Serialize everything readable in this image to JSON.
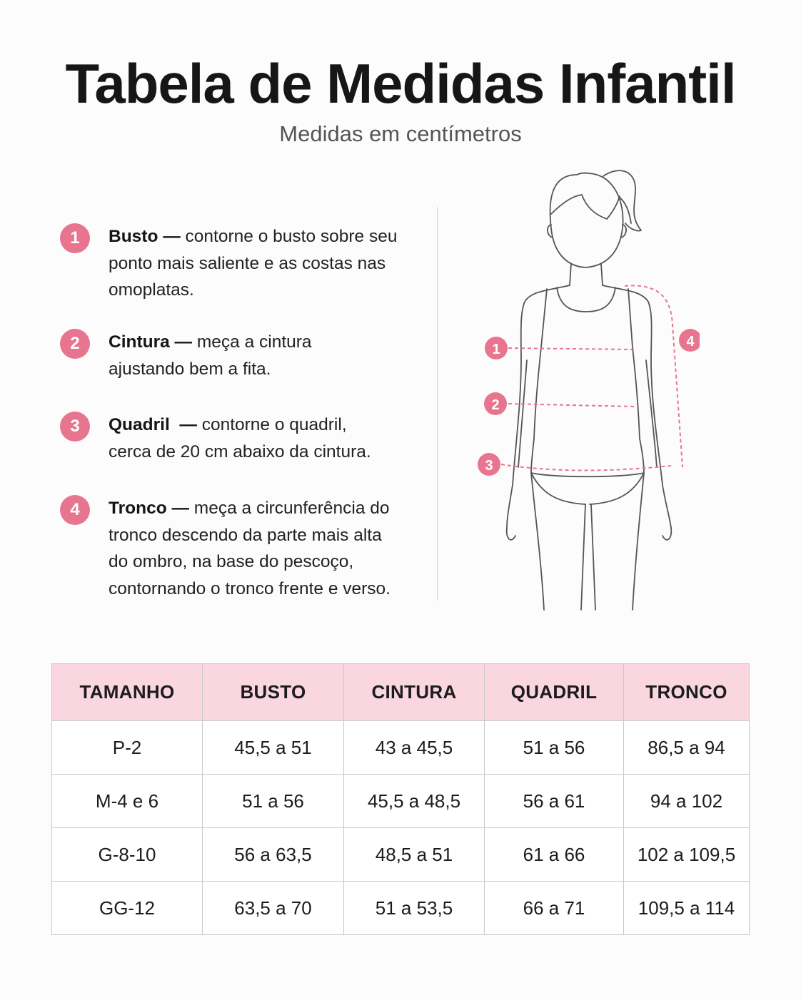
{
  "title": "Tabela de Medidas Infantil",
  "subtitle": "Medidas em centímetros",
  "accent_color": "#e8758f",
  "header_color": "#f9d6e0",
  "instructions": [
    {
      "number": "1",
      "name": "Busto",
      "sep": " — ",
      "text": "contorne o busto sobre seu ponto mais saliente e as costas nas omoplatas."
    },
    {
      "number": "2",
      "name": "Cintura",
      "sep": " — ",
      "text": "meça a cintura ajustando bem a fita."
    },
    {
      "number": "3",
      "name": "Quadril",
      "sep": "  — ",
      "text": "contorne o quadril, cerca de 20 cm abaixo da cintura."
    },
    {
      "number": "4",
      "name": "Tronco",
      "sep": " — ",
      "text": "meça a circunferência do tronco descendo da parte mais alta do ombro, na base do pescoço, contornando o tronco frente e verso."
    }
  ],
  "figure_markers": [
    "1",
    "2",
    "3",
    "4"
  ],
  "table": {
    "headers": [
      "TAMANHO",
      "BUSTO",
      "CINTURA",
      "QUADRIL",
      "TRONCO"
    ],
    "rows": [
      [
        "P-2",
        "45,5 a 51",
        "43 a 45,5",
        "51 a 56",
        "86,5 a 94"
      ],
      [
        "M-4 e 6",
        "51 a 56",
        "45,5 a 48,5",
        "56 a 61",
        "94 a 102"
      ],
      [
        "G-8-10",
        "56 a 63,5",
        "48,5 a 51",
        "61 a 66",
        "102 a 109,5"
      ],
      [
        "GG-12",
        "63,5 a 70",
        "51 a 53,5",
        "66 a 71",
        "109,5 a 114"
      ]
    ]
  }
}
